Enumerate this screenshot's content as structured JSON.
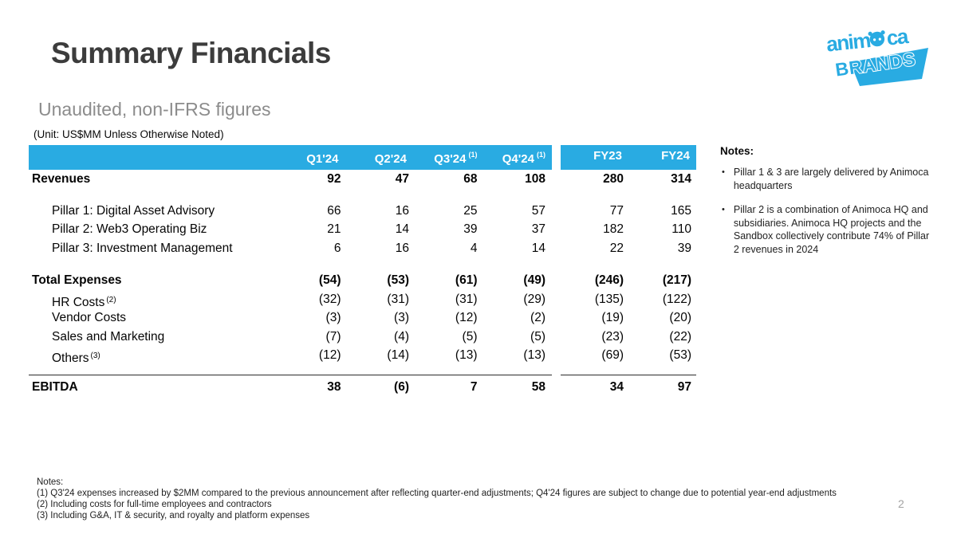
{
  "colors": {
    "accent_blue": "#29ABE2",
    "title_gray": "#3C3C3C",
    "subtitle_gray": "#8C8C8C",
    "page_number_gray": "#A3A3A3"
  },
  "slide": {
    "title": "Summary Financials",
    "subtitle": "Unaudited, non-IFRS figures",
    "unit_note": "(Unit: US$MM Unless Otherwise Noted)",
    "page_number": "2"
  },
  "logo": {
    "word_part1": "anim",
    "word_part2": "ca",
    "word_brands": "BRANDS"
  },
  "table": {
    "quarter_headers": [
      {
        "label": "Q1'24",
        "sup": ""
      },
      {
        "label": "Q2'24",
        "sup": ""
      },
      {
        "label": "Q3'24",
        "sup": "(1)"
      },
      {
        "label": "Q4'24",
        "sup": "(1)"
      }
    ],
    "fy_headers": [
      {
        "label": "FY23"
      },
      {
        "label": "FY24"
      }
    ],
    "rows": [
      {
        "label": "Revenues",
        "sup": "",
        "bold": true,
        "indent": false,
        "space_before": 4,
        "topline": false,
        "q": [
          "92",
          "47",
          "68",
          "108"
        ],
        "fy": [
          "280",
          "314"
        ]
      },
      {
        "label": "Pillar 1: Digital Asset Advisory",
        "sup": "",
        "bold": false,
        "indent": true,
        "space_before": 16,
        "topline": false,
        "q": [
          "66",
          "16",
          "25",
          "57"
        ],
        "fy": [
          "77",
          "165"
        ]
      },
      {
        "label": "Pillar 2: Web3 Operating Biz",
        "sup": "",
        "bold": false,
        "indent": true,
        "space_before": 0,
        "topline": false,
        "q": [
          "21",
          "14",
          "39",
          "37"
        ],
        "fy": [
          "182",
          "110"
        ]
      },
      {
        "label": "Pillar 3: Investment Management",
        "sup": "",
        "bold": false,
        "indent": true,
        "space_before": 0,
        "topline": false,
        "q": [
          "6",
          "16",
          "4",
          "14"
        ],
        "fy": [
          "22",
          "39"
        ]
      },
      {
        "label": "Total Expenses",
        "sup": "",
        "bold": true,
        "indent": false,
        "space_before": 17,
        "topline": false,
        "q": [
          "(54)",
          "(53)",
          "(61)",
          "(49)"
        ],
        "fy": [
          "(246)",
          "(217)"
        ]
      },
      {
        "label": "HR Costs",
        "sup": "(2)",
        "bold": false,
        "indent": true,
        "space_before": 0,
        "topline": false,
        "q": [
          "(32)",
          "(31)",
          "(31)",
          "(29)"
        ],
        "fy": [
          "(135)",
          "(122)"
        ]
      },
      {
        "label": "Vendor Costs",
        "sup": "",
        "bold": false,
        "indent": true,
        "space_before": 0,
        "topline": false,
        "q": [
          "(3)",
          "(3)",
          "(12)",
          "(2)"
        ],
        "fy": [
          "(19)",
          "(20)"
        ]
      },
      {
        "label": "Sales and Marketing",
        "sup": "",
        "bold": false,
        "indent": true,
        "space_before": 0,
        "topline": false,
        "q": [
          "(7)",
          "(4)",
          "(5)",
          "(5)"
        ],
        "fy": [
          "(23)",
          "(22)"
        ]
      },
      {
        "label": "Others",
        "sup": "(3)",
        "bold": false,
        "indent": true,
        "space_before": 0,
        "topline": false,
        "q": [
          "(12)",
          "(14)",
          "(13)",
          "(13)"
        ],
        "fy": [
          "(69)",
          "(53)"
        ]
      },
      {
        "label": "EBITDA",
        "sup": "",
        "bold": true,
        "indent": false,
        "space_before": 12,
        "topline": true,
        "q": [
          "38",
          "(6)",
          "7",
          "58"
        ],
        "fy": [
          "34",
          "97"
        ]
      }
    ]
  },
  "side_notes": {
    "heading": "Notes:",
    "bullet_char": "•",
    "bullets": [
      "Pillar 1 & 3 are largely delivered by Animoca headquarters",
      "Pillar 2 is a combination of Animoca HQ and subsidiaries. Animoca HQ projects and the Sandbox collectively contribute 74% of Pillar 2 revenues in 2024"
    ]
  },
  "footer_notes": {
    "heading": "Notes:",
    "lines": [
      "(1) Q3'24 expenses increased by $2MM compared to the previous announcement after reflecting quarter-end adjustments; Q4'24 figures are subject to change due to potential year-end adjustments",
      "(2) Including costs for full-time employees and contractors",
      "(3) Including G&A, IT & security, and royalty and platform expenses"
    ]
  }
}
